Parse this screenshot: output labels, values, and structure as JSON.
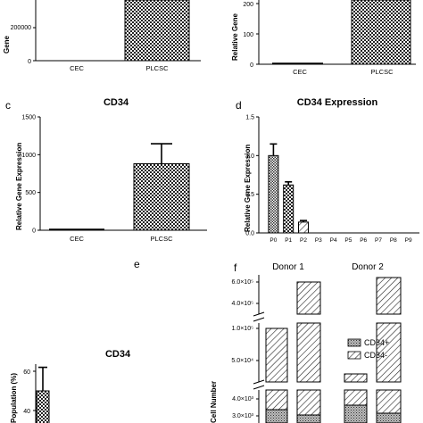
{
  "panels": {
    "a_partial": {
      "label": "",
      "ylabel": "Gene",
      "ticks": [
        "200000",
        "0"
      ],
      "categories": [
        "CEC",
        "PLCSC"
      ]
    },
    "b_partial": {
      "label": "",
      "ylabel": "Relative Gene",
      "ticks": [
        "200",
        "100",
        "0"
      ],
      "categories": [
        "CEC",
        "PLCSC"
      ]
    },
    "c": {
      "label": "c",
      "title": "CD34"
    },
    "d": {
      "label": "d",
      "title": "CD34 Expression"
    },
    "e": {
      "label": "e",
      "title": "CD34"
    },
    "f": {
      "label": "f"
    }
  },
  "chart_data": [
    {
      "panel": "c",
      "type": "bar",
      "title": "CD34",
      "ylabel": "Relative Gene Expression",
      "categories": [
        "CEC",
        "PLCSC"
      ],
      "values": [
        5,
        880
      ],
      "error": [
        0,
        265
      ],
      "ylim": [
        0,
        1500
      ],
      "yticks": [
        "0",
        "500",
        "1000",
        "1500"
      ]
    },
    {
      "panel": "d",
      "type": "bar",
      "title": "CD34 Expression",
      "ylabel": "Relative Gene Expression",
      "categories": [
        "P0",
        "P1",
        "P2",
        "P3",
        "P4",
        "P5",
        "P6",
        "P7",
        "P8",
        "P9"
      ],
      "values": [
        1.0,
        0.62,
        0.14,
        0,
        0,
        0,
        0,
        0,
        0,
        0
      ],
      "error": [
        0.15,
        0.04,
        0.02,
        0,
        0,
        0,
        0,
        0,
        0,
        0
      ],
      "ylim": [
        0,
        1.5
      ],
      "yticks": [
        "0.0",
        "0.5",
        "1.0",
        "1.5"
      ]
    },
    {
      "panel": "e",
      "type": "bar",
      "title": "CD34",
      "ylabel": "Population (%)",
      "values": [
        50
      ],
      "error": [
        12
      ],
      "yticks": [
        "60",
        "40"
      ]
    },
    {
      "panel": "f",
      "type": "bar",
      "ylabel": "Cell Number",
      "groups": [
        "Donor 1",
        "Donor 2"
      ],
      "legend": [
        "CD34+",
        "CD34-"
      ],
      "legend_position": "right",
      "yticks": [
        "6.0×10⁵",
        "4.0×10⁵",
        "1.0×10⁵",
        "5.0×10⁴",
        "4.0×10³",
        "3.0×10³"
      ],
      "bar_tops": [
        105000,
        560000,
        29000,
        620000
      ]
    }
  ]
}
